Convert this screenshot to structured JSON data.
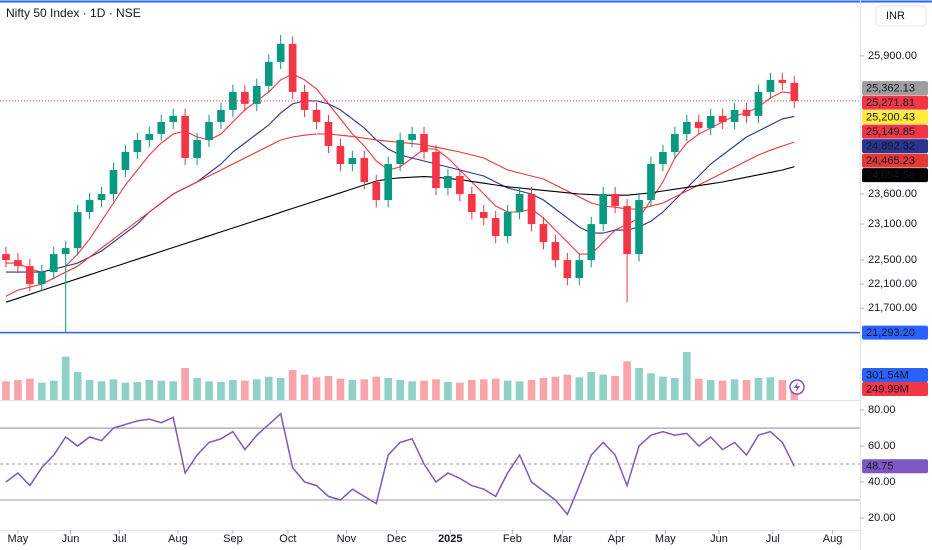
{
  "chart_data": [
    {
      "type": "candlestick",
      "title": "Nifty 50 Index · 1D · NSE",
      "currency": "INR",
      "up_color": "#089981",
      "down_color": "#f23645",
      "open": [
        22600,
        22500,
        22400,
        22100,
        22300,
        22600,
        22700,
        23300,
        23500,
        23600,
        24000,
        24300,
        24500,
        24600,
        24800,
        24900,
        24200,
        24500,
        24800,
        25000,
        25300,
        25100,
        25400,
        25800,
        26100,
        25300,
        25000,
        24800,
        24400,
        24100,
        24200,
        23800,
        23500,
        24100,
        24500,
        24600,
        24300,
        23700,
        23900,
        23600,
        23300,
        23200,
        22900,
        23300,
        23600,
        23100,
        22800,
        22500,
        22200,
        22500,
        23100,
        23600,
        23400,
        22600,
        23500,
        24100,
        24300,
        24600,
        24800,
        24700,
        24900,
        24800,
        25000,
        24900,
        25300,
        25500,
        25450
      ],
      "high": [
        22720,
        22620,
        22520,
        22420,
        22720,
        22820,
        23420,
        23620,
        23720,
        24120,
        24420,
        24620,
        24720,
        24920,
        25020,
        25020,
        24620,
        24920,
        25120,
        25420,
        25420,
        25520,
        25920,
        26250,
        26220,
        25420,
        25120,
        24920,
        24520,
        24320,
        24320,
        23920,
        24220,
        24620,
        24720,
        24720,
        24420,
        24020,
        24020,
        23720,
        23420,
        23320,
        23420,
        23720,
        23720,
        23220,
        22920,
        22620,
        22620,
        23220,
        23720,
        23720,
        23520,
        23620,
        24220,
        24420,
        24720,
        24920,
        24920,
        25020,
        25020,
        25120,
        25120,
        25420,
        25620,
        25620,
        25570
      ],
      "low": [
        22380,
        22280,
        21980,
        21980,
        22180,
        21300,
        22580,
        23180,
        23380,
        23480,
        23880,
        24180,
        24380,
        24480,
        24680,
        24080,
        24080,
        24380,
        24680,
        24880,
        24980,
        24980,
        25280,
        25680,
        25180,
        24880,
        24680,
        24280,
        23980,
        23980,
        23680,
        23380,
        23380,
        23980,
        24380,
        24180,
        23580,
        23580,
        23480,
        23180,
        23080,
        22780,
        22780,
        23180,
        22980,
        22680,
        22380,
        22080,
        22080,
        22380,
        22980,
        23280,
        21800,
        22480,
        23380,
        23980,
        24180,
        24480,
        24580,
        24580,
        24680,
        24680,
        24780,
        24780,
        25180,
        25330,
        25030
      ],
      "close": [
        22500,
        22400,
        22100,
        22300,
        22600,
        22700,
        23300,
        23500,
        23600,
        24000,
        24300,
        24500,
        24600,
        24800,
        24900,
        24200,
        24500,
        24800,
        25000,
        25300,
        25100,
        25400,
        25800,
        26100,
        25300,
        25000,
        24800,
        24400,
        24100,
        24200,
        23800,
        23500,
        24100,
        24500,
        24600,
        24300,
        23700,
        23900,
        23600,
        23300,
        23200,
        22900,
        23300,
        23600,
        23100,
        22800,
        22500,
        22200,
        22500,
        23100,
        23600,
        23400,
        22600,
        23500,
        24100,
        24300,
        24600,
        24800,
        24700,
        24900,
        24800,
        25000,
        24900,
        25300,
        25500,
        25450,
        25149.85
      ],
      "series": [
        {
          "color": "#f23645",
          "values": [
            22450,
            22450,
            22350,
            22300,
            22350,
            22400,
            22600,
            22850,
            23150,
            23450,
            23750,
            24000,
            24250,
            24450,
            24600,
            24650,
            24550,
            24500,
            24600,
            24800,
            25000,
            25150,
            25300,
            25500,
            25600,
            25500,
            25350,
            25100,
            24850,
            24600,
            24400,
            24150,
            24000,
            24050,
            24200,
            24350,
            24350,
            24200,
            24000,
            23800,
            23600,
            23400,
            23300,
            23300,
            23350,
            23200,
            23000,
            22800,
            22600,
            22600,
            22800,
            23000,
            23100,
            23200,
            23500,
            23800,
            24200,
            24450,
            24600,
            24700,
            24800,
            24900,
            24950,
            25050,
            25200,
            25300,
            25271.81
          ]
        },
        {
          "color": "#283593",
          "values": [
            22300,
            22300,
            22300,
            22300,
            22350,
            22400,
            22450,
            22550,
            22650,
            22800,
            22950,
            23100,
            23300,
            23450,
            23600,
            23700,
            23800,
            23950,
            24100,
            24300,
            24450,
            24600,
            24750,
            24950,
            25100,
            25150,
            25150,
            25100,
            25000,
            24850,
            24700,
            24500,
            24350,
            24250,
            24200,
            24150,
            24100,
            24050,
            24000,
            23950,
            23900,
            23800,
            23700,
            23650,
            23600,
            23500,
            23350,
            23200,
            23050,
            22950,
            22950,
            23000,
            23000,
            23050,
            23150,
            23300,
            23500,
            23700,
            23900,
            24100,
            24250,
            24400,
            24550,
            24650,
            24750,
            24850,
            24892.32
          ]
        },
        {
          "color": "#e53935",
          "values": [
            21900,
            22000,
            22050,
            22100,
            22200,
            22300,
            22400,
            22550,
            22700,
            22850,
            23000,
            23150,
            23300,
            23450,
            23600,
            23700,
            23800,
            23900,
            24000,
            24100,
            24200,
            24300,
            24400,
            24500,
            24550,
            24580,
            24600,
            24600,
            24580,
            24560,
            24530,
            24500,
            24480,
            24460,
            24440,
            24420,
            24380,
            24340,
            24300,
            24250,
            24200,
            24100,
            24000,
            23950,
            23900,
            23850,
            23750,
            23650,
            23550,
            23450,
            23400,
            23380,
            23350,
            23350,
            23400,
            23450,
            23550,
            23650,
            23750,
            23850,
            23950,
            24050,
            24150,
            24250,
            24330,
            24400,
            24465.23
          ]
        },
        {
          "color": "#000000",
          "values": [
            21800,
            21865,
            21930,
            21995,
            22060,
            22125,
            22190,
            22255,
            22320,
            22385,
            22450,
            22515,
            22580,
            22645,
            22710,
            22775,
            22840,
            22905,
            22970,
            23035,
            23100,
            23165,
            23230,
            23295,
            23360,
            23425,
            23490,
            23555,
            23620,
            23685,
            23750,
            23815,
            23850,
            23870,
            23880,
            23890,
            23880,
            23860,
            23840,
            23810,
            23780,
            23750,
            23720,
            23700,
            23680,
            23660,
            23640,
            23620,
            23600,
            23590,
            23580,
            23580,
            23580,
            23600,
            23620,
            23650,
            23680,
            23710,
            23740,
            23770,
            23800,
            23840,
            23880,
            23920,
            23960,
            24000,
            24054.58
          ]
        }
      ],
      "xlim": [
        -0.5,
        71.5
      ],
      "xticks": [
        {
          "value": 1.0,
          "label": "May"
        },
        {
          "value": 5.4,
          "label": "Jun"
        },
        {
          "value": 9.5,
          "label": "Jul"
        },
        {
          "value": 14.4,
          "label": "Aug"
        },
        {
          "value": 19.0,
          "label": "Sep"
        },
        {
          "value": 23.6,
          "label": "Oct"
        },
        {
          "value": 28.5,
          "label": "Nov"
        },
        {
          "value": 32.7,
          "label": "Dec"
        },
        {
          "value": 37.2,
          "label": "2025"
        },
        {
          "value": 42.4,
          "label": "Feb"
        },
        {
          "value": 46.6,
          "label": "Mar"
        },
        {
          "value": 51.1,
          "label": "Apr"
        },
        {
          "value": 55.2,
          "label": "May"
        },
        {
          "value": 59.7,
          "label": "Jun"
        },
        {
          "value": 64.2,
          "label": "Jul"
        },
        {
          "value": 69.2,
          "label": "Aug"
        }
      ],
      "ylim": [
        21170,
        26830
      ],
      "yticks": [
        {
          "value": 21700,
          "label": "21,700.00"
        },
        {
          "value": 22100,
          "label": "22,100.00"
        },
        {
          "value": 22500,
          "label": "22,500.00"
        },
        {
          "value": 23100,
          "label": "23,100.00"
        },
        {
          "value": 23600,
          "label": "23,600.00"
        },
        {
          "value": 25900,
          "label": "25,900.00"
        }
      ],
      "hline": {
        "value": 21293.2,
        "label": "21,293.20",
        "color": "#2962ff"
      },
      "price_tags": [
        {
          "value": 25362.13,
          "label": "25,362.13",
          "color": "#9e9e9e",
          "text_color": "#000000"
        },
        {
          "value": 25271.81,
          "label": "25,271.81",
          "color": "#f23645",
          "text_color": "#ffffff"
        },
        {
          "value": 25200.43,
          "label": "25,200.43",
          "color": "#ffeb3b",
          "text_color": "#000000"
        },
        {
          "value": 25149.85,
          "label": "25,149.85",
          "color": "#f23645",
          "text_color": "#ffffff"
        },
        {
          "value": 24892.32,
          "label": "24,892.32",
          "color": "#283593",
          "text_color": "#ffffff"
        },
        {
          "value": 24465.23,
          "label": "24,465.23",
          "color": "#e53935",
          "text_color": "#ffffff"
        },
        {
          "value": 24054.58,
          "label": "24,054.58",
          "color": "#000000",
          "text_color": "#ffffff"
        }
      ]
    },
    {
      "type": "bar",
      "values": [
        280,
        300,
        320,
        260,
        290,
        650,
        420,
        300,
        280,
        310,
        260,
        270,
        300,
        290,
        280,
        480,
        330,
        280,
        270,
        300,
        290,
        310,
        350,
        330,
        450,
        380,
        340,
        360,
        320,
        300,
        310,
        350,
        330,
        300,
        280,
        290,
        310,
        270,
        260,
        300,
        310,
        320,
        290,
        280,
        300,
        330,
        350,
        380,
        340,
        420,
        380,
        360,
        580,
        480,
        400,
        350,
        330,
        720,
        320,
        300,
        290,
        310,
        300,
        330,
        340,
        300,
        249.99
      ],
      "ylim": [
        0,
        900
      ],
      "tags": [
        {
          "value": 301.54,
          "label": "301.54M",
          "color": "#2962ff"
        },
        {
          "value": 249.99,
          "label": "249.99M",
          "color": "#f23645"
        }
      ]
    },
    {
      "type": "line",
      "color": "#7e57c2",
      "values": [
        40,
        45,
        38,
        48,
        55,
        65,
        60,
        65,
        63,
        70,
        72,
        74,
        75,
        73,
        76,
        45,
        55,
        62,
        64,
        68,
        58,
        66,
        72,
        78,
        48,
        40,
        38,
        32,
        30,
        36,
        32,
        28,
        55,
        62,
        64,
        50,
        40,
        45,
        42,
        38,
        36,
        32,
        45,
        55,
        40,
        35,
        30,
        22,
        38,
        55,
        62,
        55,
        38,
        60,
        66,
        68,
        66,
        67,
        60,
        65,
        58,
        62,
        55,
        66,
        68,
        62,
        48.75
      ],
      "ylim": [
        13.3,
        85.6
      ],
      "yticks": [
        {
          "value": 20,
          "label": "20.00"
        },
        {
          "value": 40,
          "label": "40.00"
        },
        {
          "value": 60,
          "label": "60.00"
        },
        {
          "value": 80,
          "label": "80.00"
        }
      ],
      "levels": [
        70,
        50,
        30
      ],
      "tag": {
        "value": 48.75,
        "label": "48.75",
        "color": "#7e57c2"
      }
    }
  ]
}
